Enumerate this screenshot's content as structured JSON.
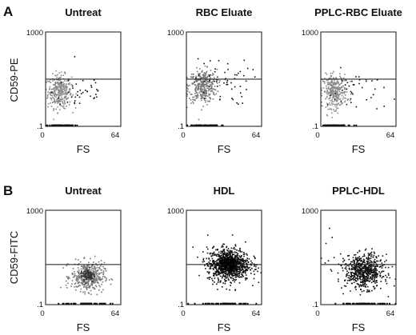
{
  "figure": {
    "rows": [
      {
        "letter": "A",
        "ylabel": "CD59-PE"
      },
      {
        "letter": "B",
        "ylabel": "CD59-FITC"
      }
    ]
  },
  "chart_data": [
    {
      "type": "scatter",
      "title": "Untreat",
      "xlabel": "FS",
      "ylabel": "CD59-PE",
      "xlim": [
        0,
        64
      ],
      "ylim": [
        0.1,
        1000
      ],
      "yscale": "log",
      "xticks": [
        "0",
        "64"
      ],
      "yticks": [
        "1000",
        ".1"
      ],
      "gate_y": 10,
      "clusters": [
        {
          "x_center": 12,
          "x_sd": 5,
          "y_center": 3,
          "y_log_sd": 0.35,
          "n": 330,
          "color": "#8c8c8c"
        },
        {
          "x_center": 30,
          "x_sd": 12,
          "y_center": 3,
          "y_log_sd": 0.45,
          "n": 40,
          "color": "#111111"
        }
      ]
    },
    {
      "type": "scatter",
      "title": "RBC Eluate",
      "xlabel": "FS",
      "ylabel": "",
      "xlim": [
        0,
        64
      ],
      "ylim": [
        0.1,
        1000
      ],
      "yscale": "log",
      "xticks": [
        "0",
        "64"
      ],
      "yticks": [
        "1000",
        ".1"
      ],
      "gate_y": 10,
      "clusters": [
        {
          "x_center": 14,
          "x_sd": 6,
          "y_center": 5,
          "y_log_sd": 0.35,
          "n": 360,
          "color": "#7a7a7a"
        },
        {
          "x_center": 30,
          "x_sd": 12,
          "y_center": 8,
          "y_log_sd": 0.5,
          "n": 55,
          "color": "#111111"
        }
      ]
    },
    {
      "type": "scatter",
      "title": "PPLC-RBC Eluate",
      "xlabel": "FS",
      "ylabel": "",
      "xlim": [
        0,
        64
      ],
      "ylim": [
        0.1,
        1000
      ],
      "yscale": "log",
      "xticks": [
        "0",
        "64"
      ],
      "yticks": [
        "1000",
        ".1"
      ],
      "gate_y": 10,
      "clusters": [
        {
          "x_center": 12,
          "x_sd": 5,
          "y_center": 3,
          "y_log_sd": 0.35,
          "n": 330,
          "color": "#8c8c8c"
        },
        {
          "x_center": 30,
          "x_sd": 12,
          "y_center": 3,
          "y_log_sd": 0.45,
          "n": 40,
          "color": "#111111"
        }
      ]
    },
    {
      "type": "scatter",
      "title": "Untreat",
      "xlabel": "FS",
      "ylabel": "CD59-FITC",
      "xlim": [
        0,
        64
      ],
      "ylim": [
        0.1,
        1000
      ],
      "yscale": "log",
      "xticks": [
        "0",
        "64"
      ],
      "yticks": [
        "1000",
        ".1"
      ],
      "gate_y": 5,
      "clusters": [
        {
          "x_center": 36,
          "x_sd": 7,
          "y_center": 1.5,
          "y_log_sd": 0.3,
          "n": 420,
          "color": "#777777"
        },
        {
          "x_center": 36,
          "x_sd": 3,
          "y_center": 1.8,
          "y_log_sd": 0.15,
          "n": 90,
          "color": "#333333"
        }
      ]
    },
    {
      "type": "scatter",
      "title": "HDL",
      "xlabel": "FS",
      "ylabel": "",
      "xlim": [
        0,
        64
      ],
      "ylim": [
        0.1,
        1000
      ],
      "yscale": "log",
      "xticks": [
        "0",
        "64"
      ],
      "yticks": [
        "1000",
        ".1"
      ],
      "gate_y": 5,
      "clusters": [
        {
          "x_center": 36,
          "x_sd": 9,
          "y_center": 5,
          "y_log_sd": 0.35,
          "n": 900,
          "color": "#111111"
        },
        {
          "x_center": 36,
          "x_sd": 4,
          "y_center": 5,
          "y_log_sd": 0.15,
          "n": 300,
          "color": "#000000"
        }
      ]
    },
    {
      "type": "scatter",
      "title": "PPLC-HDL",
      "xlabel": "FS",
      "ylabel": "",
      "xlim": [
        0,
        64
      ],
      "ylim": [
        0.1,
        1000
      ],
      "yscale": "log",
      "xticks": [
        "0",
        "64"
      ],
      "yticks": [
        "1000",
        ".1"
      ],
      "gate_y": 5,
      "clusters": [
        {
          "x_center": 37,
          "x_sd": 8,
          "y_center": 2.5,
          "y_log_sd": 0.35,
          "n": 650,
          "color": "#111111"
        },
        {
          "x_center": 10,
          "x_sd": 5,
          "y_center": 20,
          "y_log_sd": 0.5,
          "n": 12,
          "color": "#111111"
        }
      ]
    }
  ]
}
